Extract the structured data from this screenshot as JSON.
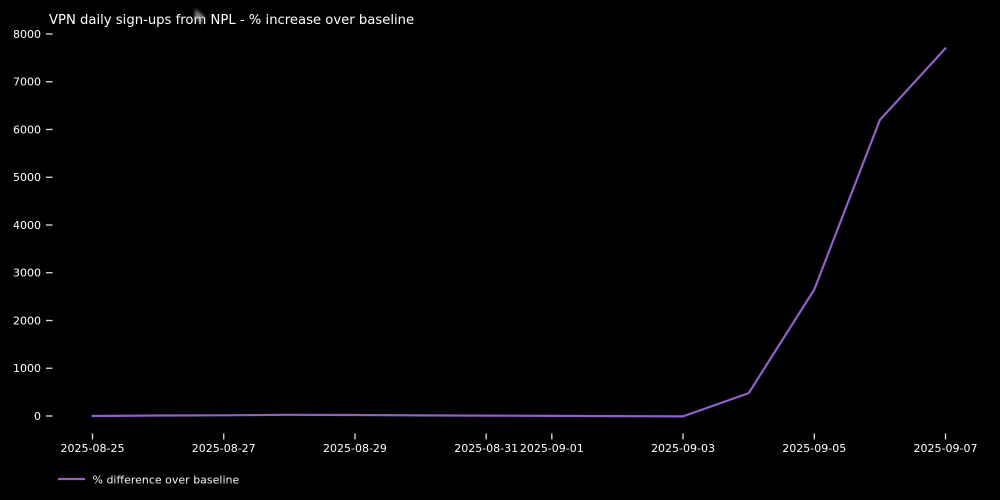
{
  "chart_data": {
    "type": "line",
    "title": "VPN daily sign-ups from NPL - % increase over baseline",
    "x": [
      "2025-08-25",
      "2025-08-26",
      "2025-08-27",
      "2025-08-28",
      "2025-08-29",
      "2025-08-30",
      "2025-08-31",
      "2025-09-01",
      "2025-09-02",
      "2025-09-03",
      "2025-09-04",
      "2025-09-05",
      "2025-09-06",
      "2025-09-07"
    ],
    "series": [
      {
        "name": "% difference over baseline",
        "color": "#9160c8",
        "values": [
          0,
          10,
          15,
          25,
          20,
          12,
          8,
          2,
          -3,
          -8,
          480,
          2650,
          6200,
          7700
        ]
      }
    ],
    "x_ticks": [
      "2025-08-25",
      "2025-08-27",
      "2025-08-29",
      "2025-08-31",
      "2025-09-01",
      "2025-09-03",
      "2025-09-05",
      "2025-09-07"
    ],
    "y_ticks": [
      0,
      1000,
      2000,
      3000,
      4000,
      5000,
      6000,
      7000,
      8000
    ],
    "ylim": [
      -350,
      8000
    ],
    "xlabel": "",
    "ylabel": "",
    "grid": false,
    "legend_position": "lower-left",
    "background_color": "#000000",
    "text_color": "#ffffff",
    "tick_color": "#e0e0e0"
  },
  "legend": {
    "label": "% difference over baseline"
  }
}
